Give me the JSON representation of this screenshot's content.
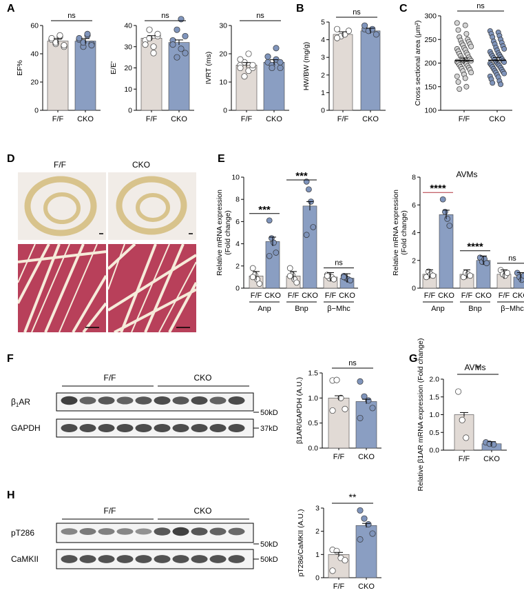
{
  "panel_labels": [
    "A",
    "B",
    "C",
    "D",
    "E",
    "F",
    "G",
    "H"
  ],
  "panel_d": {
    "labels": [
      "F/F",
      "CKO"
    ],
    "colors": {
      "whole_heart_bg": "#f0ebe6",
      "tissue_ring": "#dcc896",
      "he_bg": "#f7efe0",
      "he_fiber": "#b8405a"
    }
  },
  "panel_e_right_title": "AVMs",
  "panel_g_title": "AVMs",
  "blot_f": {
    "group_labels": [
      "F/F",
      "CKO"
    ],
    "rows": [
      {
        "label_prefix": "β",
        "label_sub": "1",
        "label_suffix": "AR",
        "marker": "50kD"
      },
      {
        "label_prefix": "GAPDH",
        "label_sub": "",
        "label_suffix": "",
        "marker": "37kD"
      }
    ]
  },
  "blot_h": {
    "group_labels": [
      "F/F",
      "CKO"
    ],
    "rows": [
      {
        "label_prefix": "pT286",
        "label_sub": "",
        "label_suffix": "",
        "marker": "50kD"
      },
      {
        "label_prefix": "CaMKII",
        "label_sub": "",
        "label_suffix": "",
        "marker": "50kD"
      }
    ]
  },
  "colors": {
    "ff_fill": "#e1dad5",
    "cko_fill": "#8a9ec2",
    "point_light": "#d4d4d4",
    "point_blue": "#7f94bb",
    "blot_band": "#1e1e1e",
    "sig_line_red": "#b0303a"
  },
  "chart_data": [
    {
      "id": "A1",
      "type": "bar",
      "categories": [
        "F/F",
        "CKO"
      ],
      "values": [
        49,
        49
      ],
      "ylabel": "EF%",
      "ylim": [
        0,
        60
      ],
      "yticks": [
        0,
        20,
        40,
        60
      ],
      "significance": "ns",
      "points": [
        [
          50,
          47,
          52,
          45,
          51,
          48,
          53,
          46
        ],
        [
          50,
          45,
          53,
          47,
          51,
          48,
          54,
          46
        ]
      ]
    },
    {
      "id": "A2",
      "type": "bar",
      "categories": [
        "F/F",
        "CKO"
      ],
      "values": [
        34,
        32
      ],
      "ylabel": "E/E'",
      "ylim": [
        0,
        40
      ],
      "yticks": [
        0,
        10,
        20,
        30,
        40
      ],
      "significance": "ns",
      "points": [
        [
          33,
          38,
          30,
          35,
          31,
          34,
          27,
          36
        ],
        [
          33,
          38,
          29,
          35,
          31,
          25,
          43,
          27
        ]
      ]
    },
    {
      "id": "A3",
      "type": "bar",
      "categories": [
        "F/F",
        "CKO"
      ],
      "values": [
        16,
        17
      ],
      "ylabel": "IVRT (ms)",
      "ylim": [
        0,
        30
      ],
      "yticks": [
        0,
        10,
        20,
        30
      ],
      "significance": "ns",
      "points": [
        [
          16,
          17,
          14,
          15,
          18,
          12,
          20,
          16,
          15
        ],
        [
          17,
          16,
          18,
          15,
          19,
          15,
          22,
          17
        ]
      ]
    },
    {
      "id": "B",
      "type": "bar",
      "categories": [
        "F/F",
        "CKO"
      ],
      "values": [
        4.3,
        4.5
      ],
      "ylabel": "HW/BW (mg/g)",
      "ylim": [
        0,
        5
      ],
      "yticks": [
        0,
        1,
        2,
        3,
        4,
        5
      ],
      "significance": "ns",
      "points": [
        [
          4.6,
          4.2,
          4.3,
          4.5,
          4.1
        ],
        [
          4.6,
          4.5,
          4.6,
          4.3,
          4.8
        ]
      ]
    },
    {
      "id": "C",
      "type": "scatter",
      "categories": [
        "F/F",
        "CKO"
      ],
      "values": [
        205,
        206
      ],
      "ylabel": "Cross sectional area (μm²)",
      "ylim": [
        100,
        300
      ],
      "yticks": [
        100,
        150,
        200,
        250,
        300
      ],
      "significance": "ns",
      "points": [
        [
          285,
          280,
          270,
          262,
          255,
          250,
          248,
          245,
          242,
          240,
          238,
          235,
          232,
          230,
          228,
          225,
          222,
          220,
          218,
          215,
          212,
          210,
          208,
          206,
          205,
          204,
          203,
          202,
          200,
          198,
          196,
          194,
          192,
          190,
          188,
          186,
          183,
          180,
          176,
          172,
          168,
          160,
          150,
          145
        ],
        [
          268,
          265,
          262,
          258,
          255,
          250,
          246,
          243,
          240,
          236,
          233,
          230,
          227,
          224,
          221,
          219,
          217,
          215,
          213,
          211,
          209,
          207,
          205,
          203,
          202,
          200,
          199,
          197,
          196,
          194,
          192,
          190,
          188,
          186,
          184,
          182,
          180,
          178,
          175,
          172,
          170,
          166,
          162,
          158,
          155
        ]
      ]
    },
    {
      "id": "E1",
      "type": "bar",
      "categories": [
        "F/F",
        "CKO",
        "F/F",
        "CKO",
        "F/F",
        "CKO"
      ],
      "groups": [
        "Anp",
        "Bnp",
        "β−Mhc"
      ],
      "values": [
        1.1,
        4.2,
        1.1,
        7.4,
        1.0,
        0.9
      ],
      "ylabel": "Relative mRNA expression (Fold change)",
      "ylim": [
        0,
        10
      ],
      "yticks": [
        0,
        2,
        4,
        6,
        8,
        10
      ],
      "significance": [
        "***",
        "***",
        "ns"
      ],
      "points": [
        [
          1.8,
          1.2,
          0.8,
          0.4,
          1.0
        ],
        [
          6.1,
          4.5,
          4.1,
          3.2,
          2.9
        ],
        [
          1.8,
          1.2,
          0.8,
          0.5,
          1.1
        ],
        [
          9.6,
          8.9,
          7.8,
          5.5,
          4.8
        ],
        [
          1.2,
          0.9,
          1.0,
          0.8,
          1.1
        ],
        [
          1.1,
          0.9,
          0.8,
          0.7,
          1.0
        ]
      ]
    },
    {
      "id": "E2",
      "type": "bar",
      "title": "AVMs",
      "categories": [
        "F/F",
        "CKO",
        "F/F",
        "CKO",
        "F/F",
        "CKO"
      ],
      "groups": [
        "Anp",
        "Bnp",
        "β−Mhc"
      ],
      "values": [
        1.0,
        5.3,
        1.0,
        2.0,
        1.0,
        0.8
      ],
      "ylabel": "Relative mRNA expression (Fold change)",
      "ylim": [
        0,
        8
      ],
      "yticks": [
        0,
        2,
        4,
        6,
        8
      ],
      "significance": [
        "****",
        "****",
        "ns"
      ],
      "points": [
        [
          0.8,
          1.2,
          1.0,
          0.9
        ],
        [
          6.4,
          5.5,
          5.0,
          4.5
        ],
        [
          0.8,
          1.1,
          1.0,
          0.9
        ],
        [
          2.2,
          1.9,
          2.1,
          1.8
        ],
        [
          1.3,
          1.0,
          0.9,
          1.1
        ],
        [
          1.1,
          0.8,
          0.6,
          0.9
        ]
      ]
    },
    {
      "id": "F",
      "type": "bar",
      "categories": [
        "F/F",
        "CKO"
      ],
      "values": [
        1.0,
        0.93
      ],
      "ylabel": "β1AR/GAPDH (A.U.)",
      "ylim": [
        0,
        1.5
      ],
      "yticks": [
        0,
        0.5,
        1.0,
        1.5
      ],
      "significance": "ns",
      "points": [
        [
          1.35,
          1.36,
          1.0,
          0.78,
          0.75
        ],
        [
          1.33,
          1.03,
          0.95,
          0.8,
          0.6
        ]
      ]
    },
    {
      "id": "G",
      "type": "bar",
      "title": "AVMs",
      "categories": [
        "F/F",
        "CKO"
      ],
      "values": [
        1.0,
        0.18
      ],
      "ylabel": "Relative β1AR mRNA expression (Fold change)",
      "ylim": [
        0,
        2.0
      ],
      "yticks": [
        0,
        0.5,
        1.0,
        1.5,
        2.0
      ],
      "significance": "*",
      "points": [
        [
          1.65,
          0.85,
          0.35
        ],
        [
          0.22,
          0.18,
          0.16
        ]
      ]
    },
    {
      "id": "H",
      "type": "bar",
      "categories": [
        "F/F",
        "CKO"
      ],
      "values": [
        1.0,
        2.25
      ],
      "ylabel": "pT286/CaMKII (A.U.)",
      "ylim": [
        0,
        3
      ],
      "yticks": [
        0,
        1,
        2,
        3
      ],
      "significance": "**",
      "points": [
        [
          1.2,
          1.15,
          0.85,
          0.75,
          0.3
        ],
        [
          2.9,
          2.55,
          2.3,
          1.9,
          1.65
        ]
      ]
    }
  ]
}
